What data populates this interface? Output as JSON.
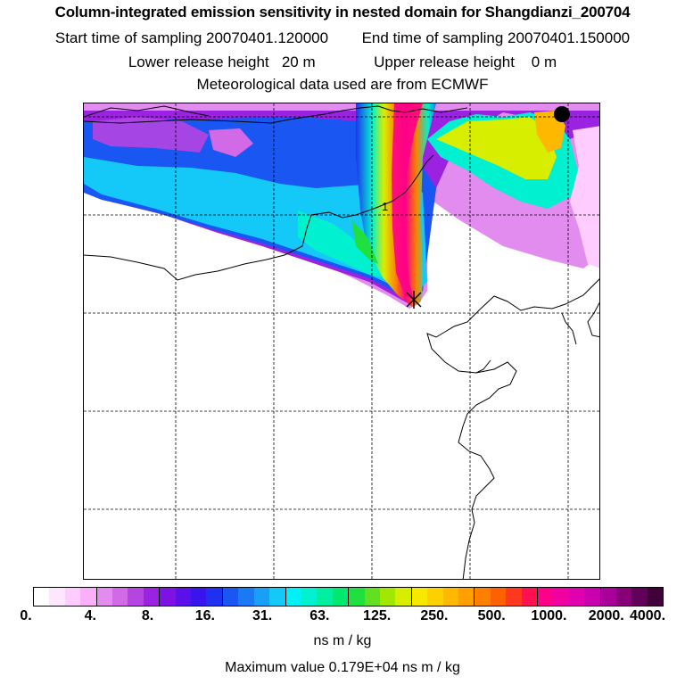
{
  "header": {
    "title": "Column-integrated emission sensitivity in nested domain for Shangdianzi_200704",
    "start_label": "Start time of sampling 20070401.120000",
    "end_label": "End time of sampling 20070401.150000",
    "lower_label": "Lower release height   20 m",
    "upper_label": "Upper release height    0 m",
    "met_label": "Meteorological data used are from ECMWF"
  },
  "map": {
    "contour_label": "1"
  },
  "legend": {
    "ticks": [
      "0.",
      "4.",
      "8.",
      "16.",
      "31.",
      "63.",
      "125.",
      "250.",
      "500.",
      "1000.",
      "2000.",
      "4000."
    ],
    "units": "ns m / kg",
    "max_value": "Maximum value  0.179E+04 ns m / kg",
    "colors": [
      "#ffffff",
      "#ffe6ff",
      "#ffccff",
      "#f9b0f7",
      "#e38cf0",
      "#d26ae8",
      "#b545e2",
      "#9a22e0",
      "#7c12e4",
      "#5a10e8",
      "#3a14ee",
      "#2030f0",
      "#1a56f2",
      "#1a7af4",
      "#18a0f6",
      "#14c8f8",
      "#00f0f8",
      "#00f0d0",
      "#00eea0",
      "#00e870",
      "#20e040",
      "#60e020",
      "#a0e800",
      "#d8ee00",
      "#f8e800",
      "#ffd000",
      "#ffb800",
      "#ffa000",
      "#ff8000",
      "#ff6000",
      "#ff3820",
      "#ff1050",
      "#ff0088",
      "#f000a0",
      "#e000b0",
      "#c800b0",
      "#a80098",
      "#880078",
      "#600058",
      "#400038"
    ]
  }
}
